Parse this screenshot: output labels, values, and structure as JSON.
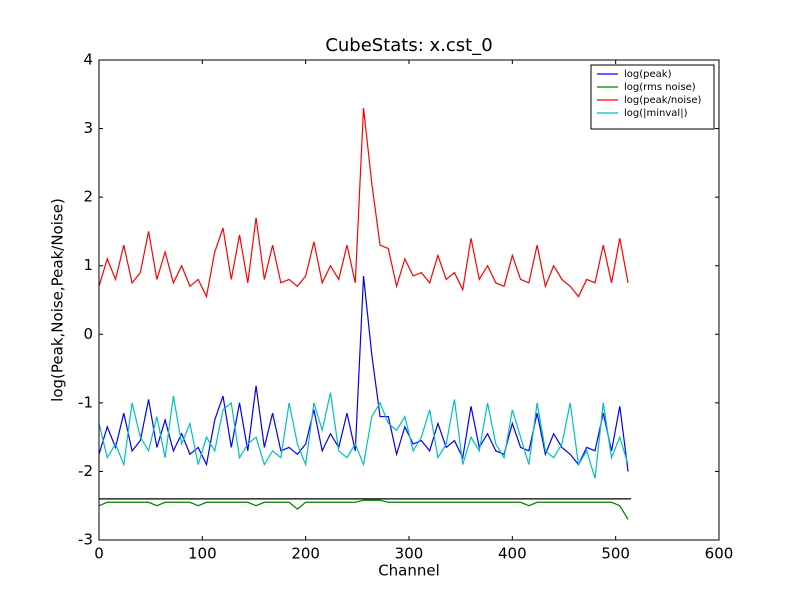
{
  "chart_data": {
    "type": "line",
    "title": "CubeStats: x.cst_0",
    "x_label": "Channel",
    "y_label": "log(Peak,Noise,Peak/Noise)",
    "x": [
      0,
      8,
      16,
      24,
      32,
      40,
      48,
      56,
      64,
      72,
      80,
      88,
      96,
      104,
      112,
      120,
      128,
      136,
      144,
      152,
      160,
      168,
      176,
      184,
      192,
      200,
      208,
      216,
      224,
      232,
      240,
      248,
      256,
      264,
      272,
      280,
      288,
      296,
      304,
      312,
      320,
      328,
      336,
      344,
      352,
      360,
      368,
      376,
      384,
      392,
      400,
      408,
      416,
      424,
      432,
      440,
      448,
      456,
      464,
      472,
      480,
      488,
      496,
      504,
      512
    ],
    "series": [
      {
        "name": "log(peak)",
        "color": "#0000ff",
        "values": [
          -1.75,
          -1.35,
          -1.65,
          -1.15,
          -1.7,
          -1.55,
          -0.95,
          -1.65,
          -1.25,
          -1.7,
          -1.45,
          -1.75,
          -1.65,
          -1.9,
          -1.25,
          -0.9,
          -1.65,
          -1.0,
          -1.7,
          -0.75,
          -1.65,
          -1.15,
          -1.7,
          -1.65,
          -1.75,
          -1.6,
          -1.1,
          -1.7,
          -1.45,
          -1.65,
          -1.15,
          -1.7,
          0.85,
          -0.3,
          -1.2,
          -1.2,
          -1.75,
          -1.35,
          -1.6,
          -1.55,
          -1.7,
          -1.3,
          -1.65,
          -1.55,
          -1.8,
          -1.05,
          -1.65,
          -1.45,
          -1.7,
          -1.75,
          -1.3,
          -1.65,
          -1.7,
          -1.15,
          -1.75,
          -1.45,
          -1.65,
          -1.75,
          -1.9,
          -1.65,
          -1.7,
          -1.15,
          -1.7,
          -1.05,
          -2.0
        ]
      },
      {
        "name": "log(rms noise)",
        "color": "#008000",
        "values": [
          -2.5,
          -2.45,
          -2.45,
          -2.45,
          -2.45,
          -2.45,
          -2.45,
          -2.5,
          -2.45,
          -2.45,
          -2.45,
          -2.45,
          -2.5,
          -2.45,
          -2.45,
          -2.45,
          -2.45,
          -2.45,
          -2.45,
          -2.5,
          -2.45,
          -2.45,
          -2.45,
          -2.45,
          -2.55,
          -2.45,
          -2.45,
          -2.45,
          -2.45,
          -2.45,
          -2.45,
          -2.45,
          -2.42,
          -2.42,
          -2.42,
          -2.45,
          -2.45,
          -2.45,
          -2.45,
          -2.45,
          -2.45,
          -2.45,
          -2.45,
          -2.45,
          -2.45,
          -2.45,
          -2.45,
          -2.45,
          -2.45,
          -2.45,
          -2.45,
          -2.45,
          -2.5,
          -2.45,
          -2.45,
          -2.45,
          -2.45,
          -2.45,
          -2.45,
          -2.45,
          -2.45,
          -2.45,
          -2.45,
          -2.5,
          -2.7
        ]
      },
      {
        "name": "log(peak/noise)",
        "color": "#ff0000",
        "values": [
          0.7,
          1.1,
          0.8,
          1.3,
          0.75,
          0.9,
          1.5,
          0.8,
          1.2,
          0.75,
          1.0,
          0.7,
          0.8,
          0.55,
          1.2,
          1.55,
          0.8,
          1.45,
          0.75,
          1.7,
          0.8,
          1.3,
          0.75,
          0.8,
          0.7,
          0.85,
          1.35,
          0.75,
          1.0,
          0.8,
          1.3,
          0.75,
          3.3,
          2.2,
          1.3,
          1.25,
          0.7,
          1.1,
          0.85,
          0.9,
          0.75,
          1.15,
          0.8,
          0.9,
          0.65,
          1.4,
          0.8,
          1.0,
          0.75,
          0.7,
          1.15,
          0.8,
          0.75,
          1.3,
          0.7,
          1.0,
          0.8,
          0.7,
          0.55,
          0.8,
          0.75,
          1.3,
          0.75,
          1.4,
          0.75
        ]
      },
      {
        "name": "log(|minval|)",
        "color": "#00bfbf",
        "values": [
          -1.3,
          -1.8,
          -1.6,
          -1.9,
          -1.0,
          -1.5,
          -1.7,
          -1.2,
          -1.8,
          -0.9,
          -1.6,
          -1.3,
          -1.9,
          -1.5,
          -1.7,
          -1.1,
          -1.0,
          -1.8,
          -1.6,
          -1.5,
          -1.9,
          -1.7,
          -1.8,
          -1.0,
          -1.6,
          -1.9,
          -1.0,
          -1.4,
          -0.85,
          -1.7,
          -1.8,
          -1.6,
          -1.9,
          -1.2,
          -1.0,
          -1.3,
          -1.4,
          -1.2,
          -1.7,
          -1.5,
          -1.1,
          -1.8,
          -1.6,
          -0.95,
          -1.9,
          -1.5,
          -1.7,
          -1.0,
          -1.6,
          -1.8,
          -1.1,
          -1.5,
          -1.9,
          -1.0,
          -1.7,
          -1.8,
          -1.6,
          -1.0,
          -1.9,
          -1.7,
          -2.1,
          -1.0,
          -1.8,
          -1.5,
          -1.9
        ]
      }
    ],
    "reference_line": {
      "y": -2.4,
      "x": [
        0,
        515
      ],
      "color": "#000000"
    },
    "xlim": [
      0,
      600
    ],
    "xticks": [
      0,
      100,
      200,
      300,
      400,
      500,
      600
    ],
    "ylim": [
      -3,
      4
    ],
    "yticks": [
      -3,
      -2,
      -1,
      0,
      1,
      2,
      3,
      4
    ],
    "legend": "upper right",
    "grid": false
  }
}
